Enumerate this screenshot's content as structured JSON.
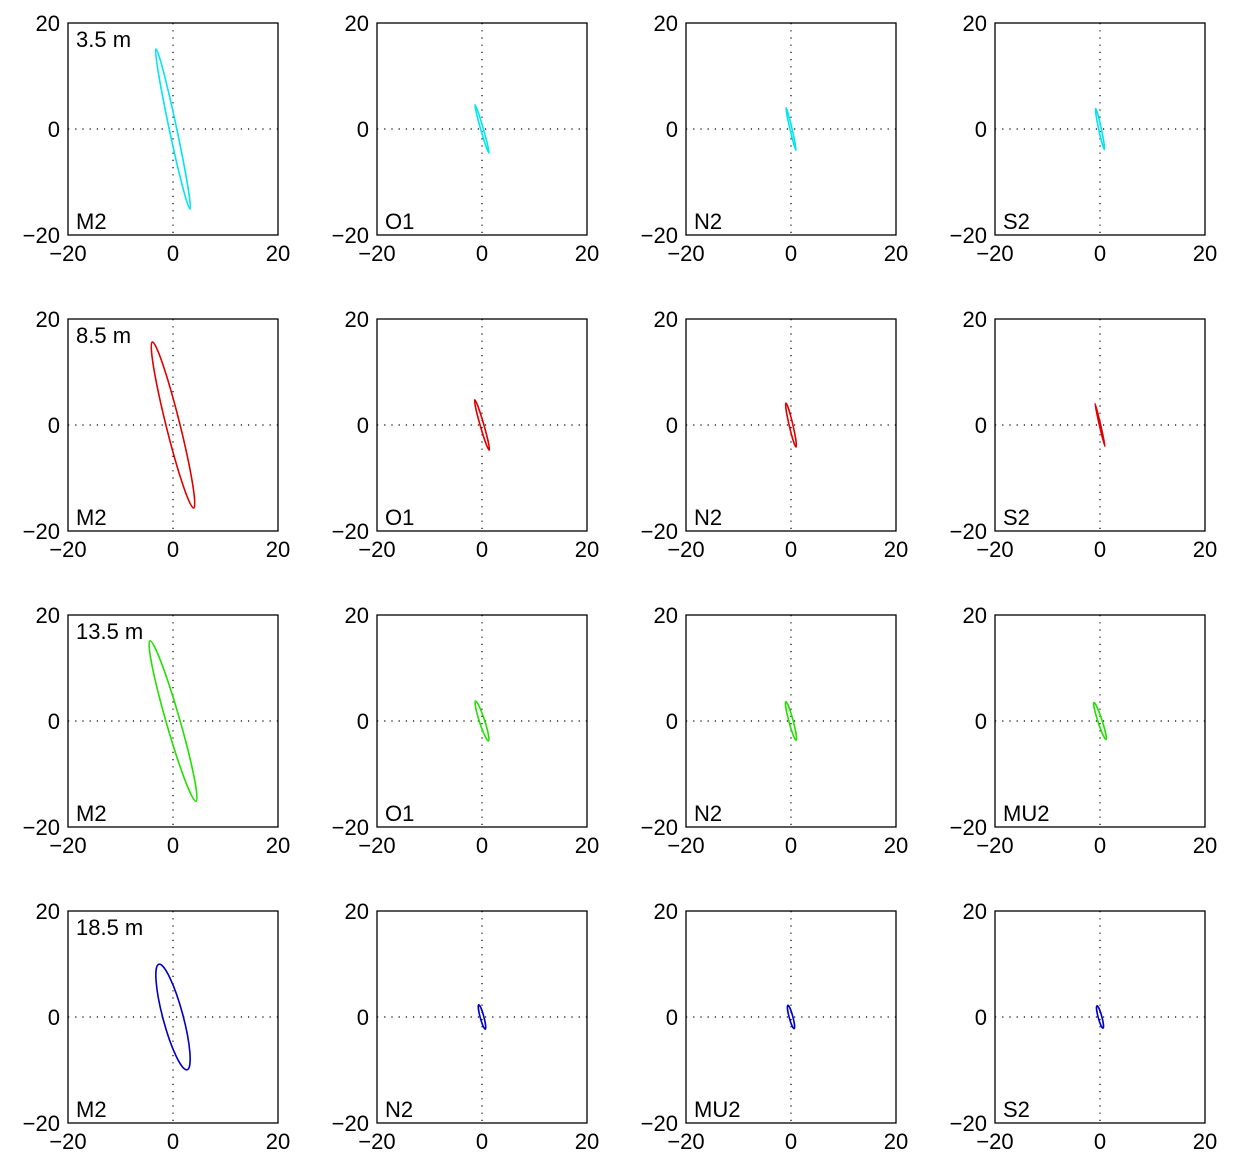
{
  "chart_data": {
    "type": "line",
    "layout": "4x4 grid of tidal current ellipse panels",
    "grid": "dotted zero axes",
    "xlim": [
      -20,
      20
    ],
    "ylim": [
      -20,
      20
    ],
    "xticks": [
      "-20",
      "0",
      "20"
    ],
    "yticks": [
      "-20",
      "0",
      "20"
    ],
    "rows": [
      {
        "depth_label": "3.5 m",
        "color": "#00e5ee",
        "panels": [
          {
            "constituent": "M2",
            "semi_major": 15.6,
            "semi_minor": 0.7,
            "angle_deg": 102
          },
          {
            "constituent": "O1",
            "semi_major": 4.8,
            "semi_minor": 0.25,
            "angle_deg": 106
          },
          {
            "constituent": "N2",
            "semi_major": 4.2,
            "semi_minor": 0.2,
            "angle_deg": 103
          },
          {
            "constituent": "S2",
            "semi_major": 4.0,
            "semi_minor": 0.25,
            "angle_deg": 102
          }
        ]
      },
      {
        "depth_label": "8.5 m",
        "color": "#e00000",
        "panels": [
          {
            "constituent": "M2",
            "semi_major": 16.3,
            "semi_minor": 1.3,
            "angle_deg": 104
          },
          {
            "constituent": "O1",
            "semi_major": 5.0,
            "semi_minor": 0.35,
            "angle_deg": 106
          },
          {
            "constituent": "N2",
            "semi_major": 4.3,
            "semi_minor": 0.35,
            "angle_deg": 103
          },
          {
            "constituent": "S2",
            "semi_major": 4.2,
            "semi_minor": 0.12,
            "angle_deg": 103
          }
        ]
      },
      {
        "depth_label": "13.5 m",
        "color": "#22e000",
        "panels": [
          {
            "constituent": "M2",
            "semi_major": 15.9,
            "semi_minor": 1.3,
            "angle_deg": 106
          },
          {
            "constituent": "O1",
            "semi_major": 4.0,
            "semi_minor": 0.5,
            "angle_deg": 108
          },
          {
            "constituent": "N2",
            "semi_major": 3.8,
            "semi_minor": 0.4,
            "angle_deg": 105
          },
          {
            "constituent": "MU2",
            "semi_major": 3.7,
            "semi_minor": 0.4,
            "angle_deg": 108
          }
        ]
      },
      {
        "depth_label": "18.5 m",
        "color": "#0000c8",
        "panels": [
          {
            "constituent": "M2",
            "semi_major": 10.4,
            "semi_minor": 1.9,
            "angle_deg": 105
          },
          {
            "constituent": "N2",
            "semi_major": 2.4,
            "semi_minor": 0.35,
            "angle_deg": 105
          },
          {
            "constituent": "MU2",
            "semi_major": 2.3,
            "semi_minor": 0.35,
            "angle_deg": 105
          },
          {
            "constituent": "S2",
            "semi_major": 2.2,
            "semi_minor": 0.35,
            "angle_deg": 105
          }
        ]
      }
    ]
  }
}
